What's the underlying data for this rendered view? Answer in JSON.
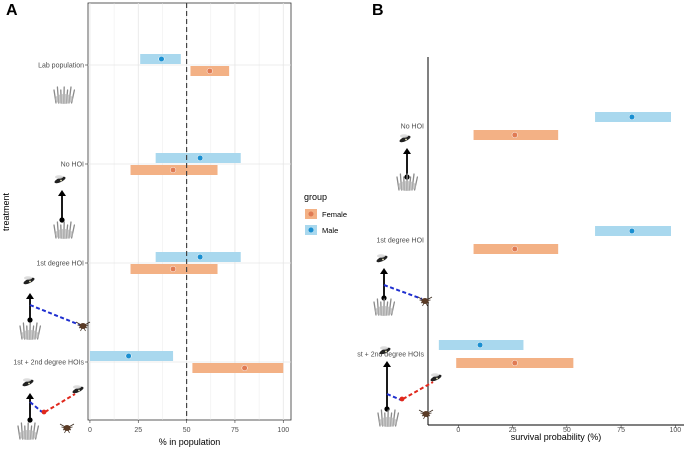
{
  "colors": {
    "female_band": "#f3b185",
    "female_point": "#e07b54",
    "male_band": "#a9d8ee",
    "male_point": "#1a8fd1",
    "grid": "#e6e6e6",
    "arrow_black": "#000000",
    "arrow_blue": "#1f2fd0",
    "arrow_red": "#e0281c"
  },
  "legend": {
    "title": "group",
    "items": [
      {
        "label": "Female",
        "series": "Female"
      },
      {
        "label": "Male",
        "series": "Male"
      }
    ]
  },
  "chart_data": [
    {
      "panel": "A",
      "type": "scatter",
      "orientation": "horizontal",
      "xlabel": "% in population",
      "ylabel": "treatment",
      "xlim": [
        -1,
        104
      ],
      "xticks": [
        0,
        25,
        50,
        75,
        100
      ],
      "reference_line": 50,
      "categories": [
        "Lab population",
        "No HOI",
        "1st degree HOI",
        "1st + 2nd degree HOIs"
      ],
      "series": [
        {
          "name": "Male",
          "values": [
            37,
            57,
            57,
            20
          ],
          "lower": [
            26,
            34,
            34,
            0
          ],
          "upper": [
            47,
            78,
            78,
            43
          ]
        },
        {
          "name": "Female",
          "values": [
            62,
            43,
            43,
            80
          ],
          "lower": [
            52,
            21,
            21,
            53
          ],
          "upper": [
            72,
            66,
            66,
            100
          ]
        }
      ]
    },
    {
      "panel": "B",
      "type": "scatter",
      "orientation": "horizontal",
      "xlabel": "survival probability (%)",
      "ylabel": "",
      "xlim": [
        -14,
        104
      ],
      "xticks": [
        0,
        25,
        50,
        75,
        100
      ],
      "categories": [
        "No HOI",
        "1st degree HOI",
        "st + 2nd degree HOIs"
      ],
      "series": [
        {
          "name": "Male",
          "values": [
            80,
            80,
            10
          ],
          "lower": [
            63,
            63,
            -9
          ],
          "upper": [
            98,
            98,
            30
          ]
        },
        {
          "name": "Female",
          "values": [
            26,
            26,
            26
          ],
          "lower": [
            7,
            7,
            -1
          ],
          "upper": [
            46,
            46,
            53
          ]
        }
      ]
    }
  ]
}
